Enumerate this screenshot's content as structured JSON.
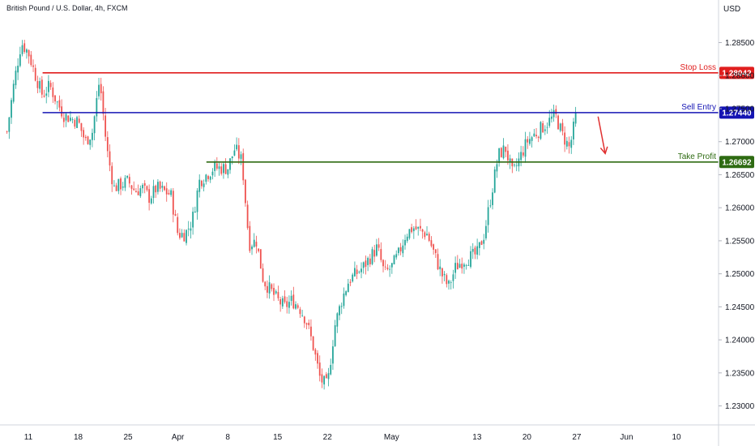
{
  "header": {
    "symbol_title": "British Pound / U.S. Dollar, 4h, FXCM",
    "currency": "USD"
  },
  "chart_data": {
    "type": "candlestick",
    "title": "British Pound / U.S. Dollar, 4h, FXCM",
    "y_axis_label": "USD",
    "ylim": [
      1.227,
      1.2885
    ],
    "yticks": [
      "1.28500",
      "1.28000",
      "1.27500",
      "1.27000",
      "1.26500",
      "1.26000",
      "1.25500",
      "1.25000",
      "1.24500",
      "1.24000",
      "1.23500",
      "1.23000"
    ],
    "xticks": [
      "11",
      "18",
      "25",
      "Apr",
      "8",
      "15",
      "22",
      "May",
      "13",
      "20",
      "27",
      "Jun",
      "10"
    ],
    "date_range": [
      "2024-03-11",
      "2024-06-10"
    ],
    "levels": [
      {
        "name": "Stop Loss",
        "value": "1.28042",
        "color": "#e01e1e",
        "start": "2024-03-13"
      },
      {
        "name": "Sell Entry",
        "value": "1.27440",
        "color": "#1414b4",
        "start": "2024-03-13"
      },
      {
        "name": "Take Profit",
        "value": "1.26692",
        "color": "#2e6b12",
        "start": "2024-04-05"
      }
    ],
    "annotations": [
      {
        "type": "arrow",
        "direction": "down",
        "color": "#e03030",
        "from": [
          "2024-05-30",
          1.2738
        ],
        "to": [
          "2024-05-31",
          1.2682
        ]
      }
    ],
    "up_color": "#26a69a",
    "down_color": "#ef5350",
    "price_path": [
      [
        "2024-03-08",
        1.2715
      ],
      [
        "2024-03-09",
        1.279
      ],
      [
        "2024-03-10",
        1.285
      ],
      [
        "2024-03-11",
        1.2835
      ],
      [
        "2024-03-12",
        1.28
      ],
      [
        "2024-03-13",
        1.277
      ],
      [
        "2024-03-14",
        1.2785
      ],
      [
        "2024-03-15",
        1.276
      ],
      [
        "2024-03-16",
        1.274
      ],
      [
        "2024-03-18",
        1.273
      ],
      [
        "2024-03-19",
        1.27
      ],
      [
        "2024-03-20",
        1.2715
      ],
      [
        "2024-03-21",
        1.2795
      ],
      [
        "2024-03-22",
        1.269
      ],
      [
        "2024-03-23",
        1.263
      ],
      [
        "2024-03-25",
        1.264
      ],
      [
        "2024-03-26",
        1.2625
      ],
      [
        "2024-03-27",
        1.263
      ],
      [
        "2024-03-28",
        1.2615
      ],
      [
        "2024-03-29",
        1.263
      ],
      [
        "2024-03-31",
        1.262
      ],
      [
        "2024-04-01",
        1.256
      ],
      [
        "2024-04-02",
        1.256
      ],
      [
        "2024-04-03",
        1.258
      ],
      [
        "2024-04-04",
        1.264
      ],
      [
        "2024-04-05",
        1.265
      ],
      [
        "2024-04-06",
        1.266
      ],
      [
        "2024-04-08",
        1.266
      ],
      [
        "2024-04-09",
        1.269
      ],
      [
        "2024-04-10",
        1.267
      ],
      [
        "2024-04-11",
        1.2545
      ],
      [
        "2024-04-12",
        1.255
      ],
      [
        "2024-04-13",
        1.249
      ],
      [
        "2024-04-15",
        1.246
      ],
      [
        "2024-04-16",
        1.245
      ],
      [
        "2024-04-17",
        1.246
      ],
      [
        "2024-04-18",
        1.245
      ],
      [
        "2024-04-19",
        1.243
      ],
      [
        "2024-04-20",
        1.239
      ],
      [
        "2024-04-21",
        1.234
      ],
      [
        "2024-04-22",
        1.233
      ],
      [
        "2024-04-23",
        1.242
      ],
      [
        "2024-04-24",
        1.246
      ],
      [
        "2024-04-25",
        1.249
      ],
      [
        "2024-04-26",
        1.25
      ],
      [
        "2024-04-27",
        1.251
      ],
      [
        "2024-04-29",
        1.254
      ],
      [
        "2024-04-30",
        1.25
      ],
      [
        "2024-05-01",
        1.251
      ],
      [
        "2024-05-02",
        1.253
      ],
      [
        "2024-05-03",
        1.256
      ],
      [
        "2024-05-04",
        1.257
      ],
      [
        "2024-05-06",
        1.256
      ],
      [
        "2024-05-07",
        1.253
      ],
      [
        "2024-05-08",
        1.25
      ],
      [
        "2024-05-09",
        1.248
      ],
      [
        "2024-05-10",
        1.251
      ],
      [
        "2024-05-11",
        1.252
      ],
      [
        "2024-05-13",
        1.253
      ],
      [
        "2024-05-14",
        1.256
      ],
      [
        "2024-05-15",
        1.262
      ],
      [
        "2024-05-16",
        1.268
      ],
      [
        "2024-05-17",
        1.269
      ],
      [
        "2024-05-18",
        1.265
      ],
      [
        "2024-05-20",
        1.27
      ],
      [
        "2024-05-21",
        1.271
      ],
      [
        "2024-05-22",
        1.272
      ],
      [
        "2024-05-23",
        1.273
      ],
      [
        "2024-05-24",
        1.274
      ],
      [
        "2024-05-25",
        1.271
      ],
      [
        "2024-05-26",
        1.269
      ],
      [
        "2024-05-27",
        1.2745
      ]
    ]
  }
}
